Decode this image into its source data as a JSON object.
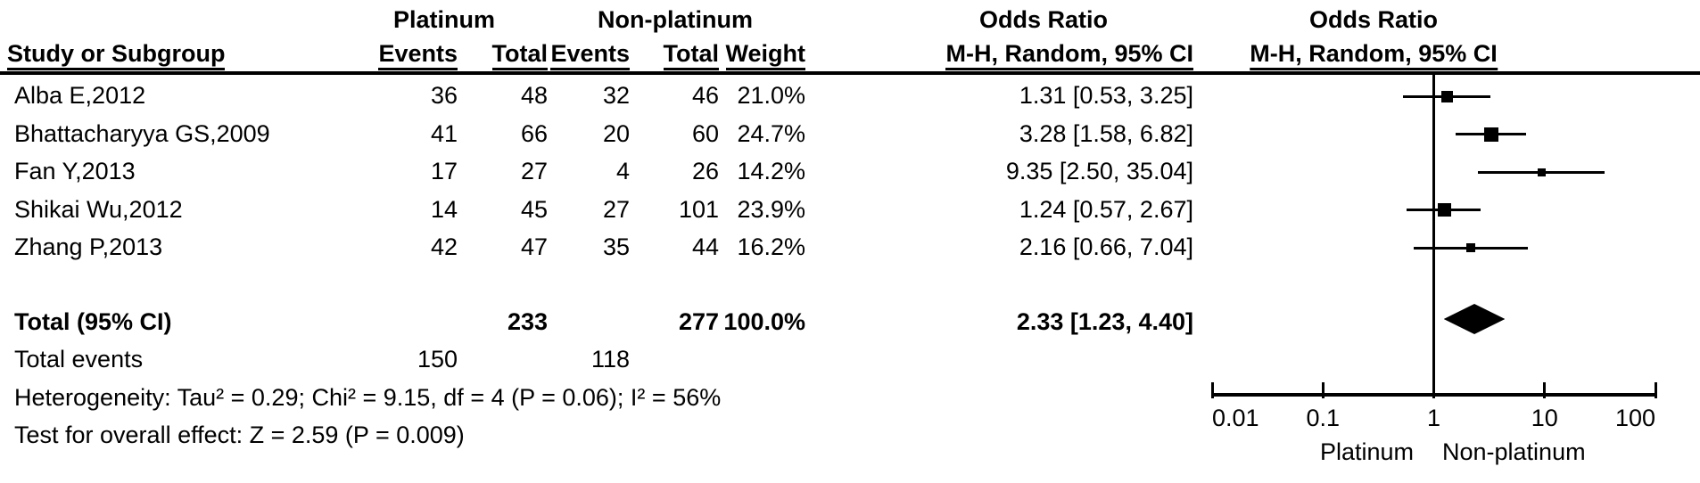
{
  "figure_title": "Forest plot: Odds Ratio, M-H Random effects, 95% CI",
  "header": {
    "group_experimental": "Platinum",
    "group_control": "Non-platinum",
    "or_column_title": "Odds Ratio",
    "or_plot_title": "Odds Ratio",
    "col_study": "Study or Subgroup",
    "col_events": "Events",
    "col_total": "Total",
    "col_events2": "Events",
    "col_total2": "Total",
    "col_weight": "Weight",
    "col_method": "M-H, Random, 95% CI",
    "col_method_plot": "M-H, Random, 95% CI"
  },
  "chart_data": {
    "type": "forest",
    "x_scale": "log10",
    "xlim": [
      0.01,
      100
    ],
    "axis_ticks": [
      {
        "label": "0.01",
        "value": 0.01
      },
      {
        "label": "0.1",
        "value": 0.1
      },
      {
        "label": "1",
        "value": 1
      },
      {
        "label": "10",
        "value": 10
      },
      {
        "label": "100",
        "value": 100
      }
    ],
    "favours_left": "Platinum",
    "favours_right": "Non-platinum",
    "studies": [
      {
        "name": "Alba E,2012",
        "events1": "36",
        "total1": "48",
        "events2": "32",
        "total2": "46",
        "weight": "21.0%",
        "weight_pct": 21.0,
        "or": 1.31,
        "lo": 0.53,
        "hi": 3.25,
        "ci_label": "1.31 [0.53, 3.25]"
      },
      {
        "name": "Bhattacharyya GS,2009",
        "events1": "41",
        "total1": "66",
        "events2": "20",
        "total2": "60",
        "weight": "24.7%",
        "weight_pct": 24.7,
        "or": 3.28,
        "lo": 1.58,
        "hi": 6.82,
        "ci_label": "3.28 [1.58, 6.82]"
      },
      {
        "name": "Fan Y,2013",
        "events1": "17",
        "total1": "27",
        "events2": "4",
        "total2": "26",
        "weight": "14.2%",
        "weight_pct": 14.2,
        "or": 9.35,
        "lo": 2.5,
        "hi": 35.04,
        "ci_label": "9.35 [2.50, 35.04]"
      },
      {
        "name": "Shikai Wu,2012",
        "events1": "14",
        "total1": "45",
        "events2": "27",
        "total2": "101",
        "weight": "23.9%",
        "weight_pct": 23.9,
        "or": 1.24,
        "lo": 0.57,
        "hi": 2.67,
        "ci_label": "1.24 [0.57, 2.67]"
      },
      {
        "name": "Zhang P,2013",
        "events1": "42",
        "total1": "47",
        "events2": "35",
        "total2": "44",
        "weight": "16.2%",
        "weight_pct": 16.2,
        "or": 2.16,
        "lo": 0.66,
        "hi": 7.04,
        "ci_label": "2.16 [0.66, 7.04]"
      }
    ],
    "total": {
      "label": "Total (95% CI)",
      "total1": "233",
      "total2": "277",
      "weight": "100.0%",
      "or": 2.33,
      "lo": 1.23,
      "hi": 4.4,
      "ci_label": "2.33 [1.23, 4.40]"
    },
    "total_events": {
      "label": "Total events",
      "events1": "150",
      "events2": "118"
    },
    "heterogeneity": "Heterogeneity: Tau² = 0.29; Chi² = 9.15, df = 4 (P = 0.06); I² = 56%",
    "overall_effect": "Test for overall effect: Z = 2.59 (P = 0.009)"
  },
  "colors": {
    "ink": "#000000",
    "background": "#ffffff"
  }
}
